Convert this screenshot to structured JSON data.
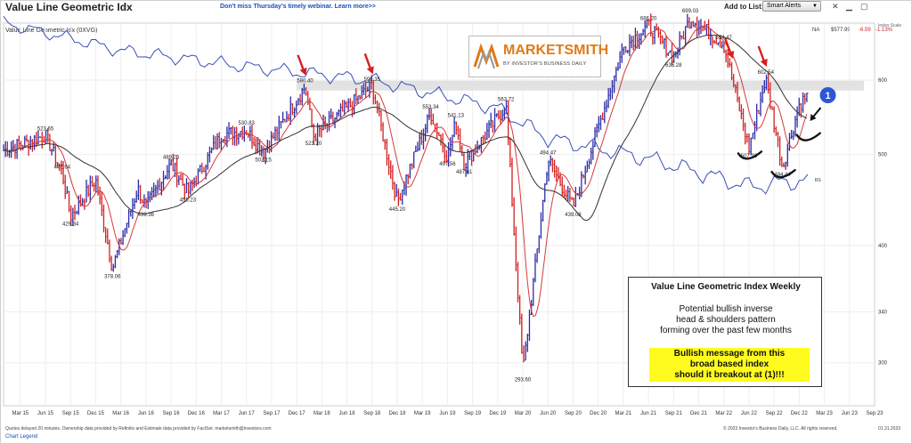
{
  "header": {
    "title": "Value Line Geometric Idx",
    "subtitle": "Value Line Geometric Idx  (0XVG)",
    "webinar_link": "Don't miss Thursday's timely webinar. Learn more>>",
    "add_to_list": "Add to List:",
    "smart_alerts": "Smart Alerts",
    "quote_na": "NA",
    "quote_price": "$577.99",
    "quote_change": "-6.59",
    "quote_pct": "-1.13%",
    "index_scale": "Index Scale",
    "icons": [
      "flag-icon",
      "close-icon",
      "minimize-icon",
      "restore-icon",
      "chevron-down-icon"
    ]
  },
  "logo": {
    "brand": "MARKETSMITH",
    "tagline": "BY INVESTOR'S BUSINESS DAILY"
  },
  "annotation": {
    "heading": "Value Line Geometric Index Weekly",
    "body": [
      "Potential bullish inverse",
      "head & shoulders pattern",
      "forming over the past few months"
    ],
    "highlight": [
      "Bullish message from this",
      "broad based index",
      "should it breakout at (1)!!!"
    ],
    "marker": "1",
    "accent_red": "#d42020",
    "highlight_color": "#fffb1e",
    "marker_color": "#2b56d6"
  },
  "footer": {
    "note": "Quotes delayed 20 minutes. Ownership data provided by Refinitiv and Estimate data provided by FactSet. marketsmith@investors.com",
    "legend_link": "Chart Legend",
    "copyright": "© 2023 Investor's Business Daily, LLC. All rights reserved.",
    "date": "01.31.2023"
  },
  "chart_data": {
    "type": "bar",
    "xlim": [
      "2015-01",
      "2023-09"
    ],
    "ylim": [
      270,
      690
    ],
    "yscale": "log",
    "y_ticks": [
      300,
      340,
      400,
      500,
      600
    ],
    "x_ticks": [
      "Mar 15",
      "Jun 15",
      "Sep 15",
      "Dec 15",
      "Mar 16",
      "Jun 16",
      "Sep 16",
      "Dec 16",
      "Mar 17",
      "Jun 17",
      "Sep 17",
      "Dec 17",
      "Mar 18",
      "Jun 18",
      "Sep 18",
      "Dec 18",
      "Mar 19",
      "Jun 19",
      "Sep 19",
      "Dec 19",
      "Mar 20",
      "Jun 20",
      "Sep 20",
      "Dec 20",
      "Mar 21",
      "Jun 21",
      "Sep 21",
      "Dec 21",
      "Mar 22",
      "Jun 22",
      "Sep 22",
      "Dec 22",
      "Mar 23",
      "Jun 23",
      "Sep 23"
    ],
    "price_anchors": [
      {
        "x": "2015-01",
        "y": 505
      },
      {
        "x": "2015-06",
        "y": 523.65
      },
      {
        "x": "2015-08",
        "y": 477.64
      },
      {
        "x": "2015-09",
        "y": 429.34
      },
      {
        "x": "2015-12",
        "y": 470
      },
      {
        "x": "2016-02",
        "y": 378.06
      },
      {
        "x": "2016-05",
        "y": 460
      },
      {
        "x": "2016-06",
        "y": 439.36
      },
      {
        "x": "2016-09",
        "y": 489.25
      },
      {
        "x": "2016-11",
        "y": 455.23
      },
      {
        "x": "2017-03",
        "y": 525
      },
      {
        "x": "2017-06",
        "y": 530.83
      },
      {
        "x": "2017-08",
        "y": 502.15
      },
      {
        "x": "2018-01",
        "y": 590.4
      },
      {
        "x": "2018-02",
        "y": 523.2
      },
      {
        "x": "2018-06",
        "y": 560
      },
      {
        "x": "2018-09",
        "y": 592.35
      },
      {
        "x": "2018-12",
        "y": 445.2
      },
      {
        "x": "2019-04",
        "y": 553.34
      },
      {
        "x": "2019-06",
        "y": 497.56
      },
      {
        "x": "2019-07",
        "y": 541.13
      },
      {
        "x": "2019-08",
        "y": 487.61
      },
      {
        "x": "2020-01",
        "y": 563.72
      },
      {
        "x": "2020-03",
        "y": 293.6
      },
      {
        "x": "2020-06",
        "y": 494.47
      },
      {
        "x": "2020-09",
        "y": 439.08
      },
      {
        "x": "2021-03",
        "y": 650
      },
      {
        "x": "2021-06",
        "y": 686.2
      },
      {
        "x": "2021-09",
        "y": 635.28
      },
      {
        "x": "2021-11",
        "y": 699.03
      },
      {
        "x": "2022-03",
        "y": 654.47
      },
      {
        "x": "2022-06",
        "y": 507.36
      },
      {
        "x": "2022-08",
        "y": 602.54
      },
      {
        "x": "2022-10",
        "y": 484.44
      },
      {
        "x": "2022-12",
        "y": 565
      },
      {
        "x": "2023-01",
        "y": 578
      }
    ],
    "relative_strength": [
      {
        "x": "2015-01",
        "y": 690
      },
      {
        "x": "2016-03",
        "y": 645
      },
      {
        "x": "2017-06",
        "y": 620
      },
      {
        "x": "2018-09",
        "y": 600
      },
      {
        "x": "2019-12",
        "y": 560
      },
      {
        "x": "2020-06",
        "y": 520
      },
      {
        "x": "2021-06",
        "y": 495
      },
      {
        "x": "2022-06",
        "y": 462
      },
      {
        "x": "2023-01",
        "y": 470
      }
    ],
    "rs_label": "RS",
    "value_labels": [
      "523.65",
      "477.64",
      "429.34",
      "378.06",
      "439.36",
      "489.25",
      "455.23",
      "530.83",
      "502.15",
      "590.40",
      "523.20",
      "592.35",
      "445.20",
      "553.34",
      "497.56",
      "541.13",
      "487.61",
      "563.72",
      "293.60",
      "494.47",
      "439.08",
      "686.20",
      "635.28",
      "699.03",
      "654.47",
      "507.36",
      "602.54",
      "484.44"
    ],
    "resistance_level": 592,
    "colors": {
      "bar_up": "#2b2ba8",
      "bar_down": "#d42020",
      "ma10": "#d43a3a",
      "ma40": "#333333",
      "rs": "#3a4fb8"
    }
  }
}
